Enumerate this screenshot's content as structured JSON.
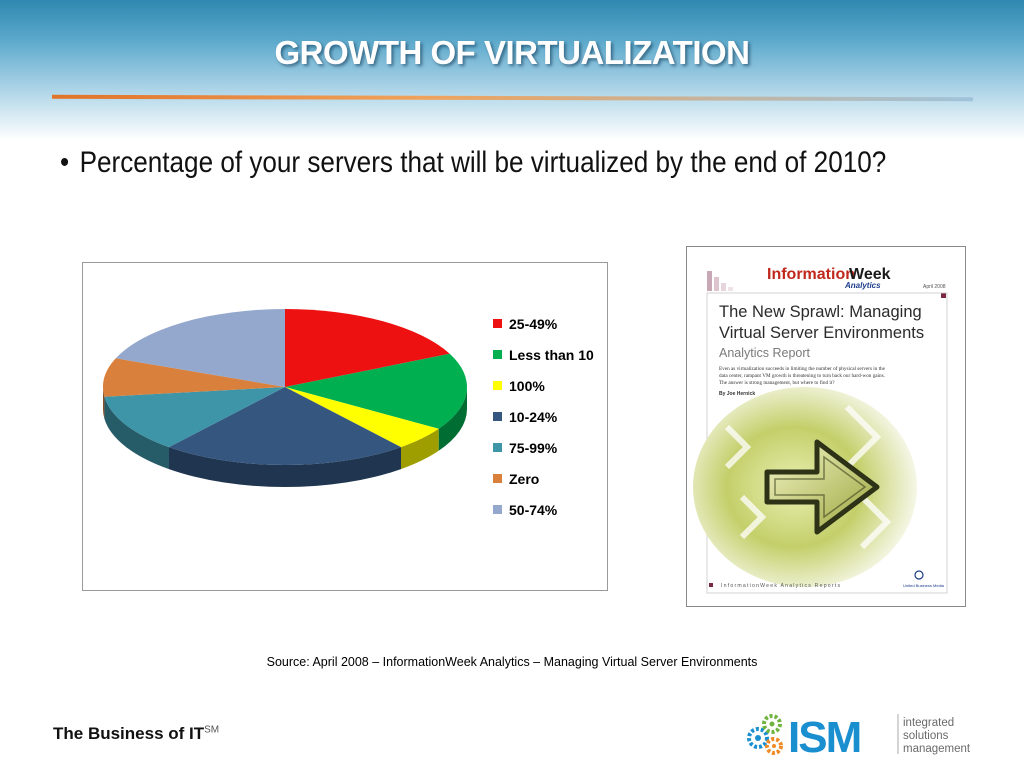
{
  "title": "GROWTH OF VIRTUALIZATION",
  "bullet": "Percentage of your servers that will be virtualized by the end of 2010?",
  "chart_data": {
    "type": "pie",
    "labels": [
      "25-49%",
      "Less than 10",
      "100%",
      "10-24%",
      "75-99%",
      "Zero",
      "50-74%"
    ],
    "values": [
      18,
      16,
      5,
      22,
      12,
      8,
      19
    ],
    "colors": [
      "#ee1111",
      "#00b050",
      "#ffff00",
      "#34567f",
      "#3e95a8",
      "#d9803c",
      "#94a7cd"
    ],
    "legend_position": "right"
  },
  "report_cover": {
    "brand_info": "Information",
    "brand_week": "Week",
    "brand_sub": "Analytics",
    "date": "April 2008",
    "title_line1": "The New Sprawl: Managing",
    "title_line2": "Virtual Server Environments",
    "subtitle": "Analytics Report",
    "abstract_line1": "Even as virtualization succeeds in limiting the number of physical servers in the",
    "abstract_line2": "data center, rampant VM growth is threatening to turn back our hard-won gains.",
    "abstract_line3": "The answer is strong management, but where to find it?",
    "author": "By Joe Hernick",
    "footer_series": "InformationWeek Analytics Reports",
    "footer_publisher": "United Business Media"
  },
  "source": "Source:  April 2008 – InformationWeek Analytics – Managing Virtual Server Environments",
  "footer": {
    "text": "The Business of IT",
    "mark": "SM"
  },
  "logo": {
    "name": "ISM",
    "tag1": "integrated",
    "tag2": "solutions",
    "tag3": "management",
    "colors": {
      "blue": "#1a8fd0",
      "green": "#6fb43f",
      "orange": "#f08a24",
      "gray": "#8a8a8a"
    }
  }
}
